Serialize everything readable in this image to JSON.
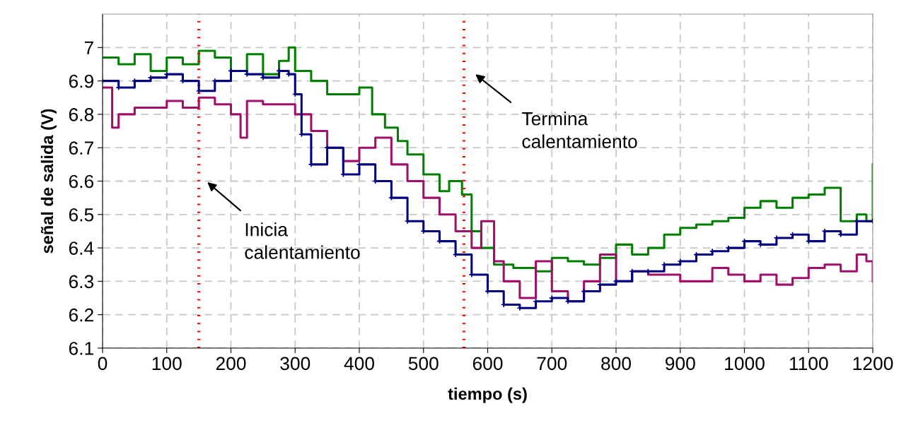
{
  "chart_data": {
    "type": "step",
    "xlabel": "tiempo (s)",
    "ylabel": "señal de salida (V)",
    "xlim": [
      0,
      1200
    ],
    "xticks": [
      0,
      100,
      200,
      300,
      400,
      500,
      600,
      700,
      800,
      900,
      1000,
      1100,
      1200
    ],
    "ylim": [
      6.1,
      7.1
    ],
    "yticks": [
      6.1,
      6.2,
      6.3,
      6.4,
      6.5,
      6.6,
      6.7,
      6.8,
      6.9,
      7
    ],
    "grid": true,
    "legend": false,
    "line_style": "solid",
    "series": [
      {
        "color": "#008000",
        "marker": "none",
        "x": [
          0,
          25,
          50,
          75,
          100,
          125,
          150,
          175,
          200,
          225,
          250,
          275,
          290,
          300,
          325,
          350,
          375,
          400,
          420,
          440,
          460,
          475,
          500,
          525,
          540,
          560,
          575,
          590,
          610,
          640,
          675,
          700,
          725,
          750,
          775,
          800,
          825,
          850,
          875,
          900,
          925,
          950,
          975,
          1000,
          1025,
          1050,
          1075,
          1100,
          1125,
          1150,
          1175,
          1190,
          1200
        ],
        "values": [
          6.97,
          6.95,
          6.98,
          6.93,
          6.97,
          6.95,
          6.99,
          6.97,
          6.93,
          6.98,
          6.92,
          6.96,
          7.0,
          6.93,
          6.9,
          6.86,
          6.86,
          6.88,
          6.8,
          6.76,
          6.72,
          6.68,
          6.62,
          6.57,
          6.6,
          6.56,
          6.45,
          6.4,
          6.35,
          6.34,
          6.33,
          6.37,
          6.36,
          6.35,
          6.37,
          6.41,
          6.38,
          6.4,
          6.44,
          6.46,
          6.47,
          6.48,
          6.49,
          6.52,
          6.54,
          6.52,
          6.55,
          6.56,
          6.58,
          6.48,
          6.5,
          6.48,
          6.65
        ]
      },
      {
        "color": "#000080",
        "marker": "cross",
        "x": [
          0,
          25,
          50,
          75,
          100,
          125,
          150,
          175,
          200,
          225,
          250,
          275,
          290,
          300,
          310,
          325,
          350,
          375,
          400,
          425,
          450,
          475,
          500,
          525,
          550,
          575,
          600,
          625,
          650,
          675,
          700,
          725,
          750,
          775,
          800,
          825,
          850,
          875,
          900,
          925,
          950,
          975,
          1000,
          1025,
          1050,
          1075,
          1100,
          1125,
          1150,
          1175,
          1200
        ],
        "values": [
          6.9,
          6.88,
          6.9,
          6.91,
          6.92,
          6.9,
          6.87,
          6.9,
          6.93,
          6.92,
          6.91,
          6.93,
          6.92,
          6.86,
          6.74,
          6.65,
          6.7,
          6.62,
          6.65,
          6.6,
          6.55,
          6.48,
          6.45,
          6.42,
          6.38,
          6.32,
          6.27,
          6.23,
          6.22,
          6.24,
          6.25,
          6.24,
          6.27,
          6.29,
          6.3,
          6.33,
          6.33,
          6.35,
          6.36,
          6.38,
          6.39,
          6.4,
          6.42,
          6.41,
          6.43,
          6.44,
          6.42,
          6.45,
          6.44,
          6.48,
          6.48
        ]
      },
      {
        "color": "#a0106a",
        "marker": "none",
        "x": [
          0,
          15,
          25,
          50,
          75,
          100,
          125,
          150,
          175,
          200,
          215,
          225,
          250,
          275,
          300,
          325,
          350,
          375,
          400,
          425,
          450,
          475,
          500,
          525,
          550,
          575,
          590,
          610,
          625,
          650,
          675,
          700,
          725,
          750,
          775,
          800,
          825,
          850,
          875,
          900,
          925,
          950,
          975,
          1000,
          1025,
          1050,
          1075,
          1100,
          1125,
          1150,
          1175,
          1190,
          1200
        ],
        "values": [
          6.88,
          6.76,
          6.8,
          6.82,
          6.82,
          6.84,
          6.82,
          6.85,
          6.83,
          6.8,
          6.73,
          6.84,
          6.83,
          6.83,
          6.8,
          6.75,
          6.7,
          6.66,
          6.7,
          6.73,
          6.65,
          6.6,
          6.55,
          6.5,
          6.45,
          6.4,
          6.48,
          6.36,
          6.3,
          6.25,
          6.36,
          6.27,
          6.24,
          6.3,
          6.38,
          6.3,
          6.33,
          6.32,
          6.32,
          6.3,
          6.3,
          6.34,
          6.32,
          6.3,
          6.32,
          6.29,
          6.31,
          6.34,
          6.35,
          6.33,
          6.38,
          6.36,
          6.3
        ]
      }
    ],
    "ref_lines": [
      {
        "axis": "x",
        "value": 150,
        "color": "#ff0000",
        "line_style": "dotted"
      },
      {
        "axis": "x",
        "value": 563,
        "color": "#ff0000",
        "line_style": "dotted"
      }
    ],
    "annotations": [
      "Inicia\ncalentamiento",
      "Termina\ncalentamiento"
    ]
  }
}
